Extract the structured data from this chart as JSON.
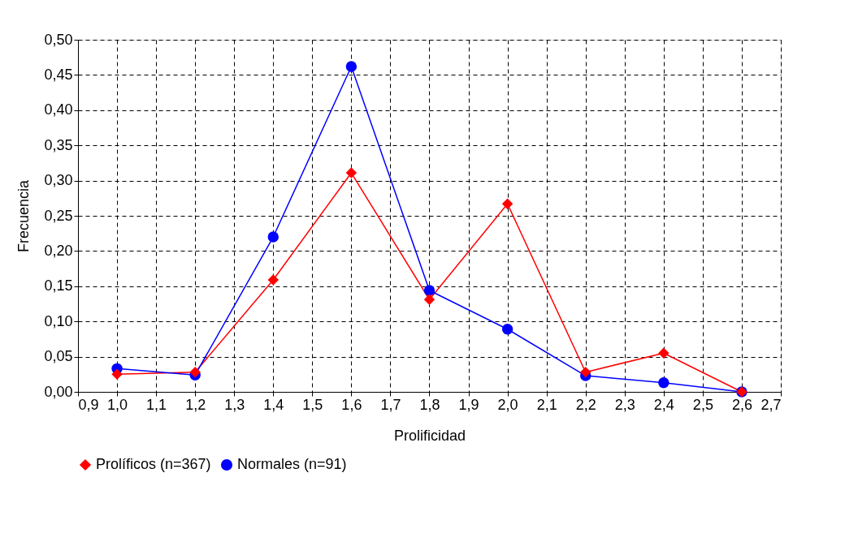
{
  "chart_data": {
    "type": "line",
    "xlabel": "Prolificidad",
    "ylabel": "Frecuencia",
    "x": [
      1.0,
      1.2,
      1.4,
      1.6,
      1.8,
      2.0,
      2.2,
      2.4,
      2.6
    ],
    "series": [
      {
        "name": "Prolíficos (n=367)",
        "color": "#ff0000",
        "marker": "diamond",
        "values": [
          0.025,
          0.028,
          0.159,
          0.311,
          0.131,
          0.267,
          0.028,
          0.055,
          0.0
        ]
      },
      {
        "name": "Normales (n=91)",
        "color": "#0000ff",
        "marker": "circle",
        "values": [
          0.033,
          0.024,
          0.22,
          0.462,
          0.144,
          0.089,
          0.023,
          0.013,
          0.0
        ]
      }
    ],
    "xlim": [
      0.9,
      2.7
    ],
    "xticks": [
      {
        "value": 0.9,
        "label": "0,9"
      },
      {
        "value": 1.0,
        "label": "1,0"
      },
      {
        "value": 1.1,
        "label": "1,1"
      },
      {
        "value": 1.2,
        "label": "1,2"
      },
      {
        "value": 1.3,
        "label": "1,3"
      },
      {
        "value": 1.4,
        "label": "1,4"
      },
      {
        "value": 1.5,
        "label": "1,5"
      },
      {
        "value": 1.6,
        "label": "1,6"
      },
      {
        "value": 1.7,
        "label": "1,7"
      },
      {
        "value": 1.8,
        "label": "1,8"
      },
      {
        "value": 1.9,
        "label": "1,9"
      },
      {
        "value": 2.0,
        "label": "2,0"
      },
      {
        "value": 2.1,
        "label": "2,1"
      },
      {
        "value": 2.2,
        "label": "2,2"
      },
      {
        "value": 2.3,
        "label": "2,3"
      },
      {
        "value": 2.4,
        "label": "2,4"
      },
      {
        "value": 2.5,
        "label": "2,5"
      },
      {
        "value": 2.6,
        "label": "2,6"
      },
      {
        "value": 2.7,
        "label": "2,7"
      }
    ],
    "ylim": [
      0,
      0.5
    ],
    "yticks": [
      {
        "value": 0,
        "label": "0,00"
      },
      {
        "value": 0.05,
        "label": "0,05"
      },
      {
        "value": 0.1,
        "label": "0,10"
      },
      {
        "value": 0.15,
        "label": "0,15"
      },
      {
        "value": 0.2,
        "label": "0,20"
      },
      {
        "value": 0.25,
        "label": "0,25"
      },
      {
        "value": 0.3,
        "label": "0,30"
      },
      {
        "value": 0.35,
        "label": "0,35"
      },
      {
        "value": 0.4,
        "label": "0,40"
      },
      {
        "value": 0.45,
        "label": "0,45"
      },
      {
        "value": 0.5,
        "label": "0,50"
      }
    ],
    "grid": true,
    "legend": "bottom",
    "line_style": "solid"
  }
}
